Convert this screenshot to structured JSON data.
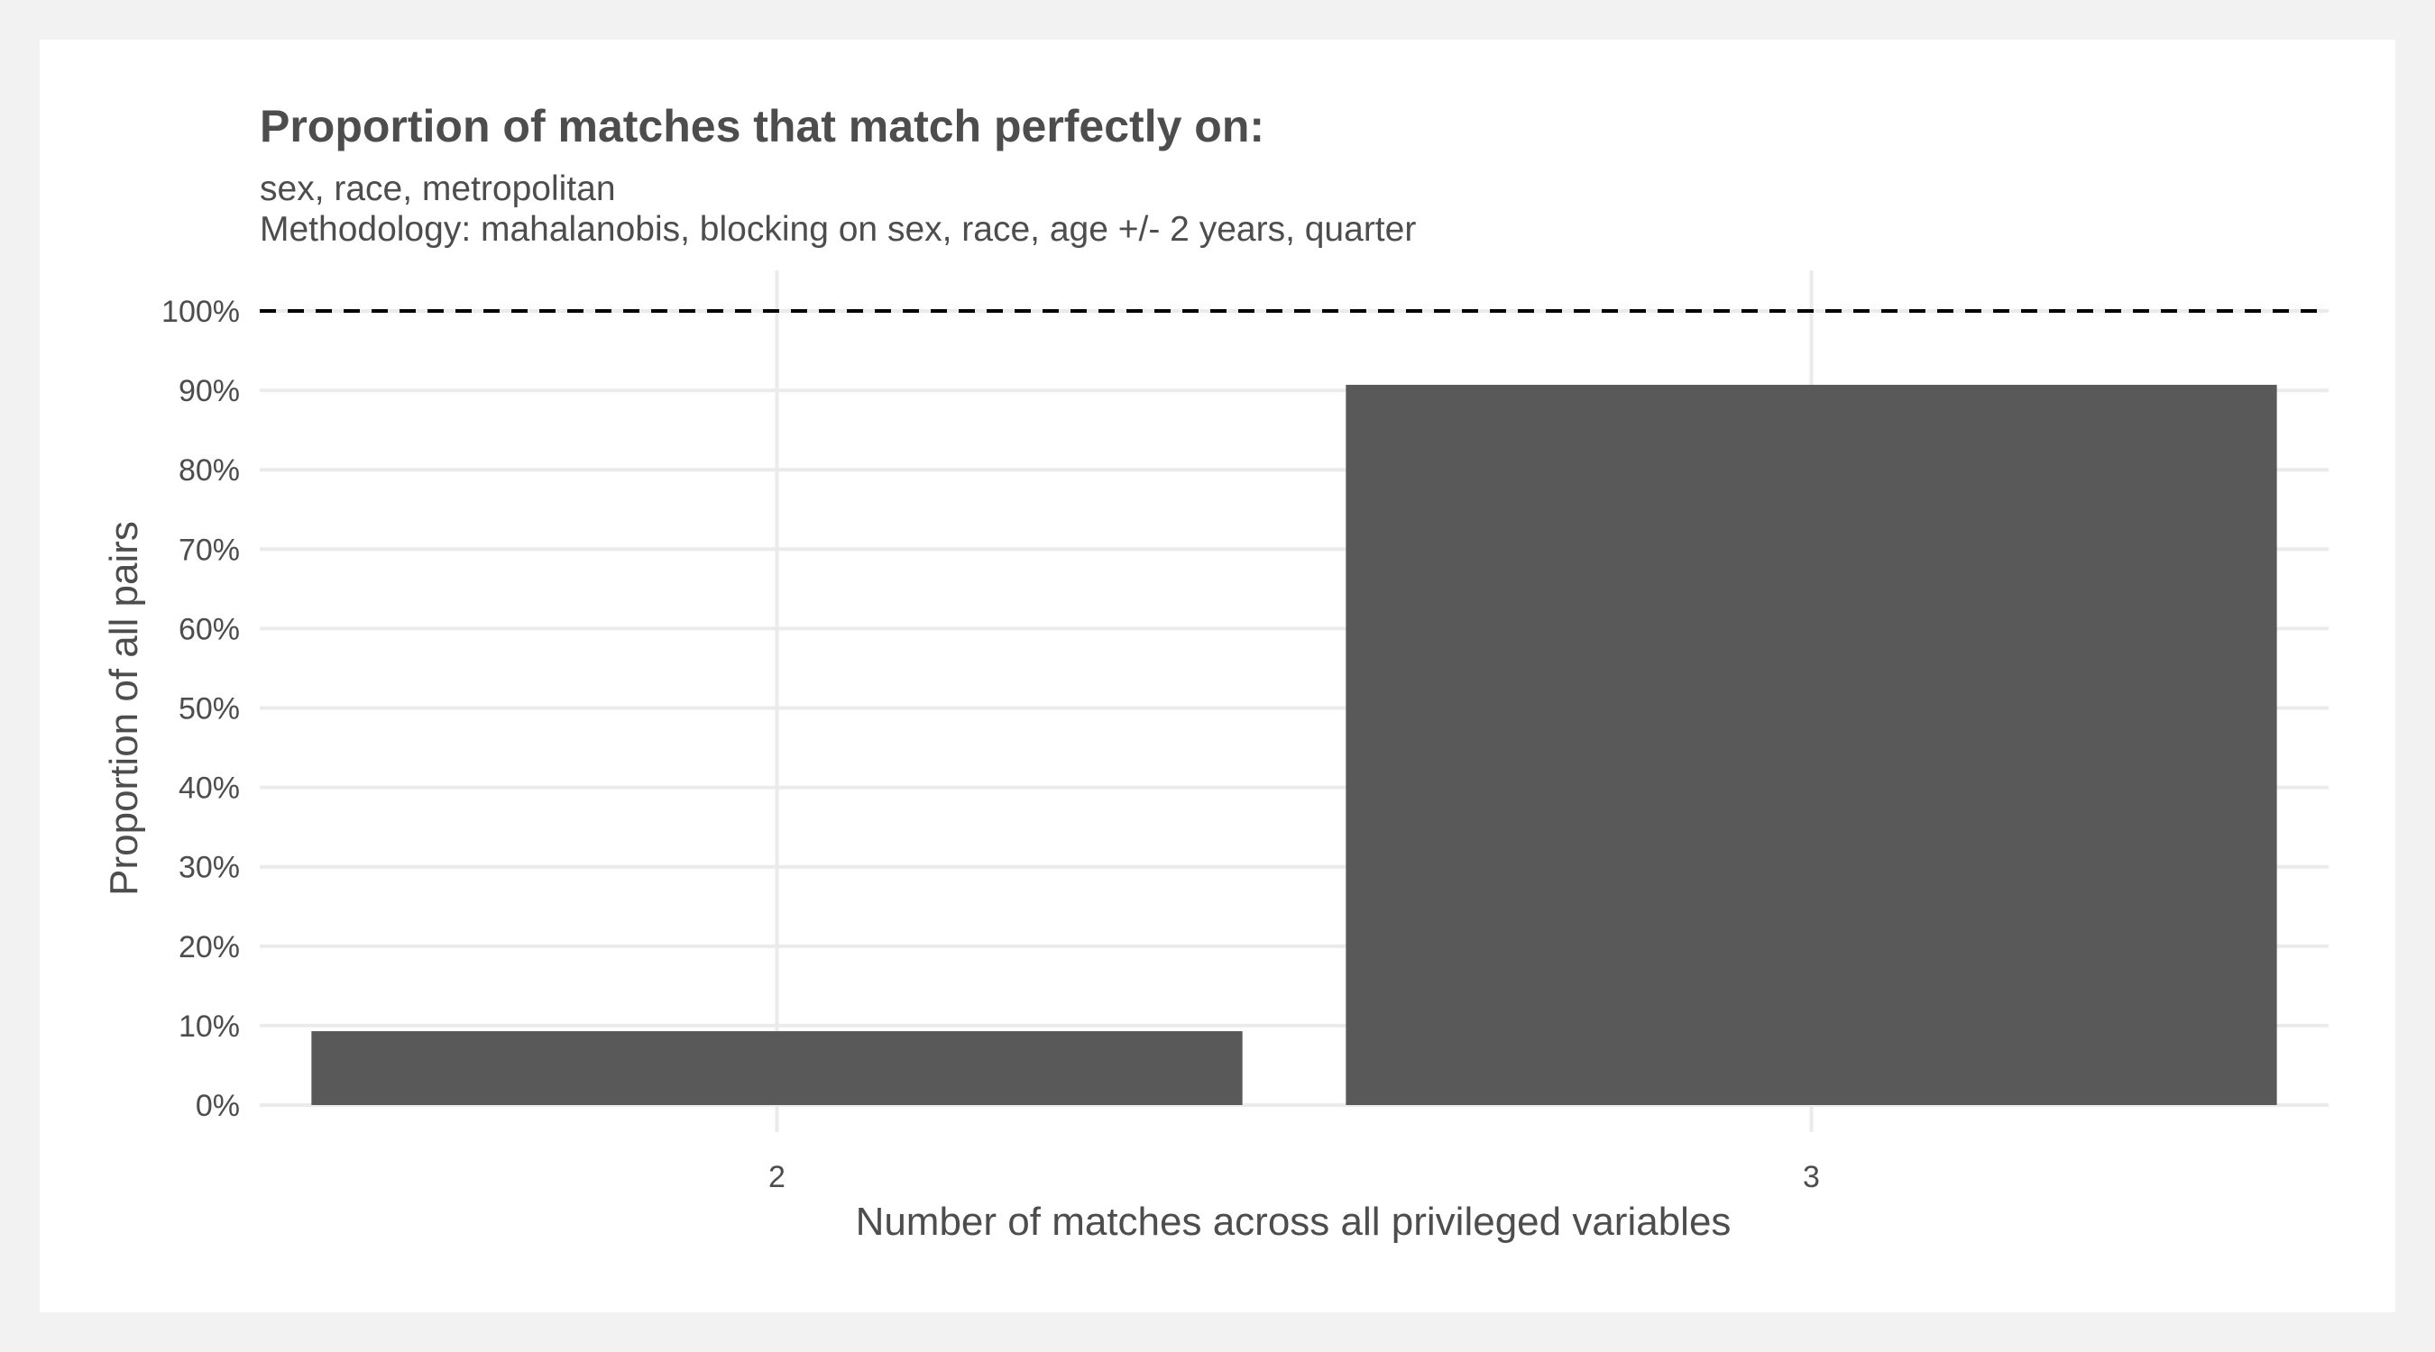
{
  "chart_data": {
    "type": "bar",
    "title": "Proportion of matches that match perfectly on:",
    "subtitle_lines": [
      "sex, race, metropolitan",
      "Methodology: mahalanobis, blocking on sex, race, age +/- 2 years, quarter"
    ],
    "xlabel": "Number of matches across all privileged variables",
    "ylabel": "Proportion of all pairs",
    "categories": [
      "2",
      "3"
    ],
    "values": [
      0.093,
      0.907
    ],
    "ylim": [
      0,
      1
    ],
    "yticks": [
      0,
      0.1,
      0.2,
      0.3,
      0.4,
      0.5,
      0.6,
      0.7,
      0.8,
      0.9,
      1.0
    ],
    "ytick_labels": [
      "0%",
      "10%",
      "20%",
      "30%",
      "40%",
      "50%",
      "60%",
      "70%",
      "80%",
      "90%",
      "100%"
    ],
    "reference_line": 1.0,
    "bar_color": "#595959",
    "grid": true,
    "legend": "none"
  }
}
